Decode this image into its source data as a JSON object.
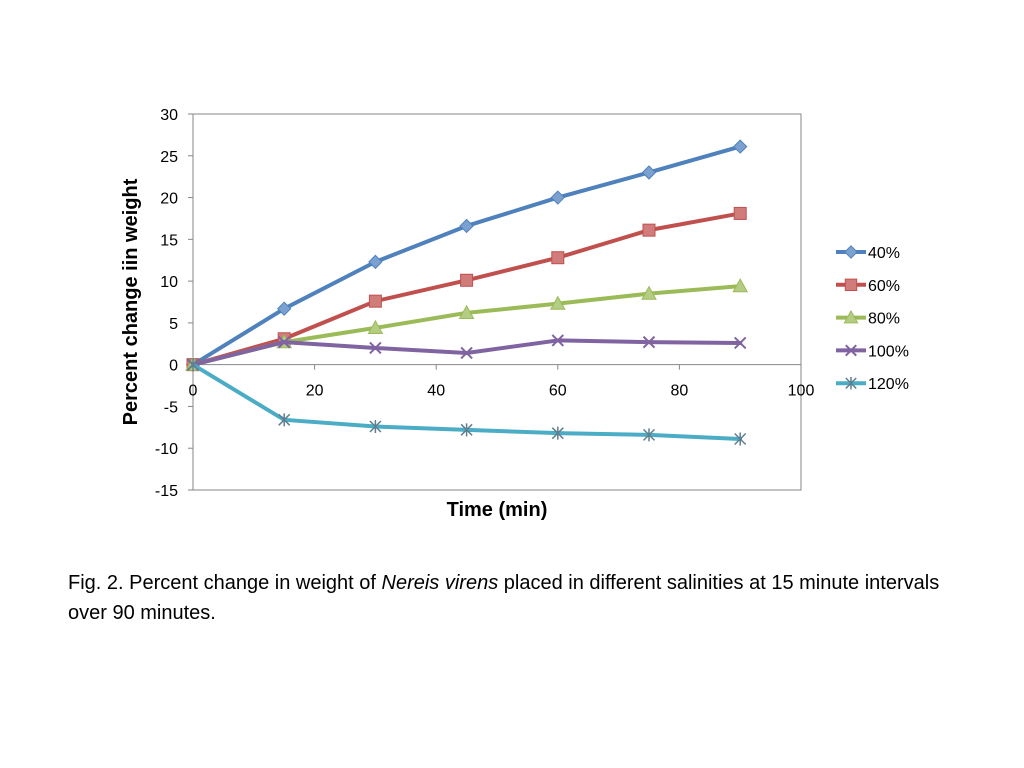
{
  "chart_data": {
    "type": "line",
    "xlabel": "Time (min)",
    "ylabel": "Percent change iin weight",
    "xlim": [
      0,
      100
    ],
    "ylim": [
      -15,
      30
    ],
    "xticks": [
      0,
      20,
      40,
      60,
      80,
      100
    ],
    "yticks": [
      30,
      25,
      20,
      15,
      10,
      5,
      0,
      -5,
      -10,
      -15
    ],
    "grid": false,
    "legend_position": "right",
    "x": [
      0,
      15,
      30,
      45,
      60,
      75,
      90
    ],
    "series": [
      {
        "name": "40%",
        "color": "#4f81bd",
        "marker": "diamond",
        "values": [
          0,
          6.7,
          12.3,
          16.6,
          20.0,
          23.0,
          26.1
        ]
      },
      {
        "name": "60%",
        "color": "#c0504d",
        "marker": "square",
        "values": [
          0,
          3.1,
          7.6,
          10.1,
          12.8,
          16.1,
          18.1
        ]
      },
      {
        "name": "80%",
        "color": "#9bbb59",
        "marker": "triangle",
        "values": [
          0,
          2.7,
          4.4,
          6.2,
          7.3,
          8.5,
          9.4
        ]
      },
      {
        "name": "100%",
        "color": "#8064a2",
        "marker": "x",
        "values": [
          0,
          2.7,
          2.0,
          1.4,
          2.9,
          2.7,
          2.6
        ]
      },
      {
        "name": "120%",
        "color": "#4bacc6",
        "marker": "star",
        "values": [
          0,
          -6.6,
          -7.4,
          -7.8,
          -8.2,
          -8.4,
          -8.9
        ]
      }
    ]
  },
  "caption": {
    "prefix": "Fig. 2. Percent change in weight of ",
    "species": "Nereis virens",
    "suffix": " placed in different salinities at 15 minute intervals over 90 minutes."
  }
}
